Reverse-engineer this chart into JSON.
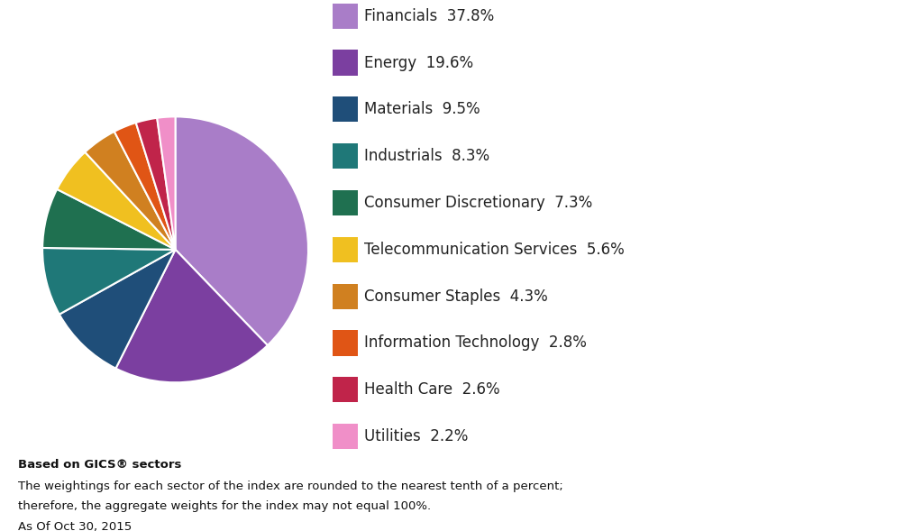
{
  "labels": [
    "Financials",
    "Energy",
    "Materials",
    "Industrials",
    "Consumer Discretionary",
    "Telecommunication Services",
    "Consumer Staples",
    "Information Technology",
    "Health Care",
    "Utilities"
  ],
  "values": [
    37.8,
    19.6,
    9.5,
    8.3,
    7.3,
    5.6,
    4.3,
    2.8,
    2.6,
    2.2
  ],
  "colors": [
    "#A97DC8",
    "#7B3FA0",
    "#1F4E79",
    "#1F7878",
    "#1F7050",
    "#F0C020",
    "#D08020",
    "#E05515",
    "#C0244A",
    "#F08FC8"
  ],
  "footnote_bold": "Based on GICS® sectors",
  "footnote_line2": "The weightings for each sector of the index are rounded to the nearest tenth of a percent;",
  "footnote_line3": "therefore, the aggregate weights for the index may not equal 100%.",
  "footnote_date": "As Of Oct 30, 2015",
  "background_color": "#FFFFFF",
  "startangle": 90,
  "legend_fontsize": 12,
  "footnote_fontsize": 9.5
}
